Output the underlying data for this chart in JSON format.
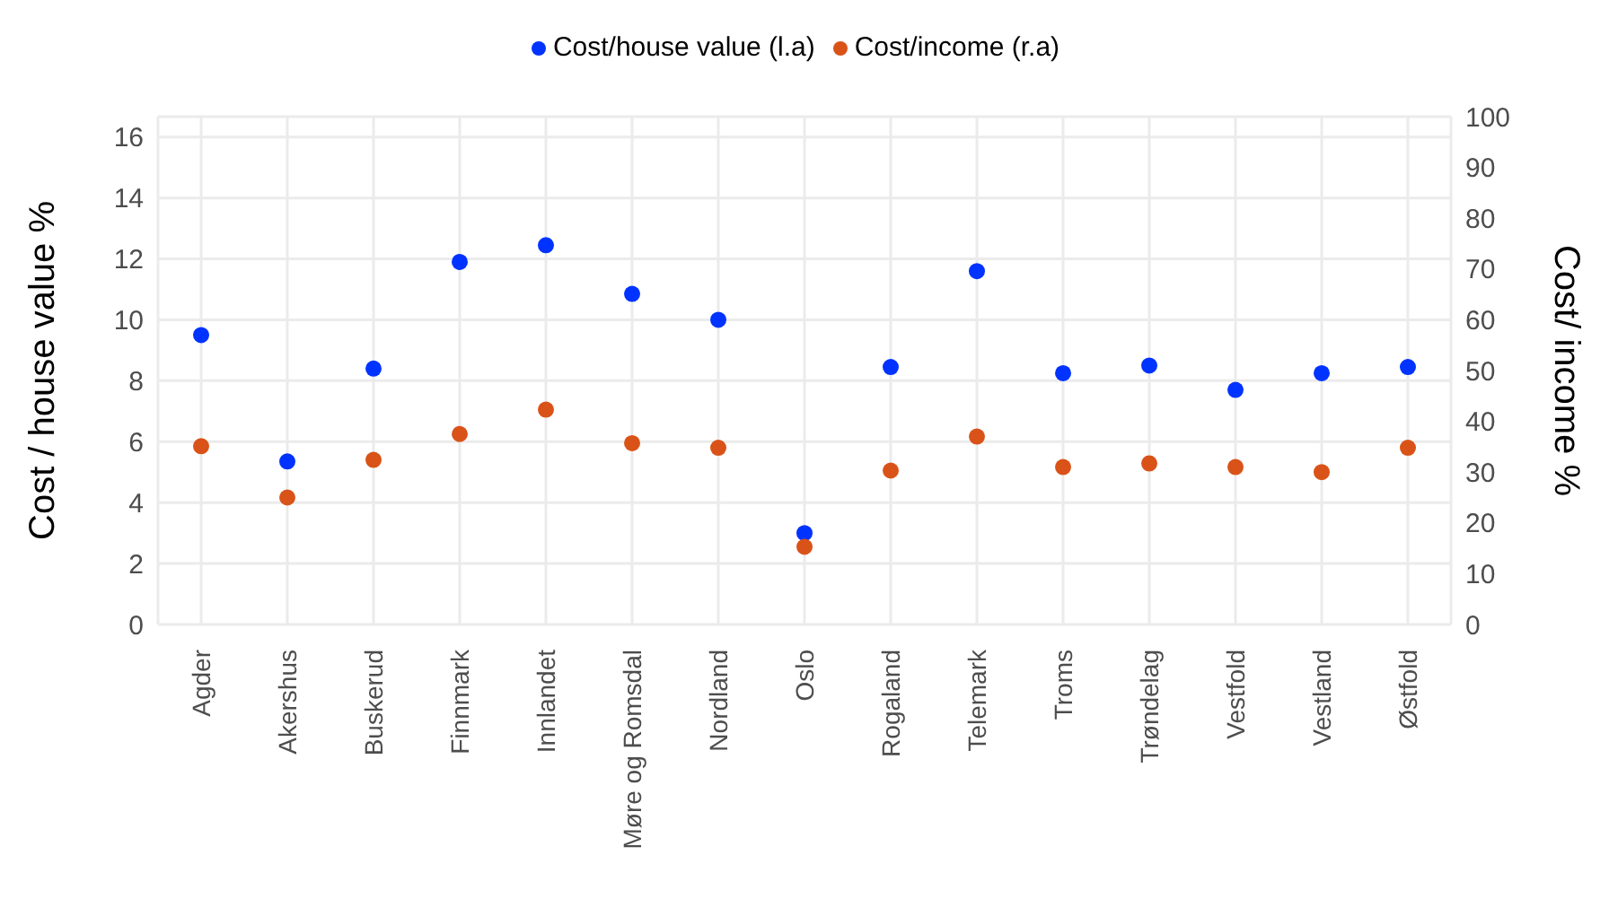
{
  "chart_data": {
    "type": "scatter",
    "categories": [
      "Agder",
      "Akershus",
      "Buskerud",
      "Finnmark",
      "Innlandet",
      "Møre og Romsdal",
      "Nordland",
      "Oslo",
      "Rogaland",
      "Telemark",
      "Troms",
      "Trøndelag",
      "Vestfold",
      "Vestland",
      "Østfold"
    ],
    "series": [
      {
        "name": "Cost/house value (l.a)",
        "color": "#0033ff",
        "values": [
          9.5,
          5.35,
          8.4,
          11.9,
          12.45,
          10.85,
          10.0,
          3.0,
          8.45,
          11.6,
          8.25,
          8.5,
          7.7,
          8.25,
          8.45
        ]
      },
      {
        "name": "Cost/income (r.a)",
        "color": "#d95319",
        "axis": "y2",
        "values": [
          35.1,
          25,
          32.4,
          37.5,
          42.3,
          35.7,
          34.8,
          15.3,
          30.3,
          37,
          31,
          31.7,
          31,
          30,
          34.8
        ]
      }
    ],
    "ylabel": "Cost / house value %",
    "y2label": "Cost/ income %",
    "ylim": [
      0,
      16.67
    ],
    "yticks": [
      0,
      2,
      4,
      6,
      8,
      10,
      12,
      14,
      16
    ],
    "y2lim": [
      0,
      100
    ],
    "y2ticks": [
      0,
      10,
      20,
      30,
      40,
      50,
      60,
      70,
      80,
      90,
      100
    ],
    "grid": true,
    "legend": "top",
    "marker": "circle"
  }
}
